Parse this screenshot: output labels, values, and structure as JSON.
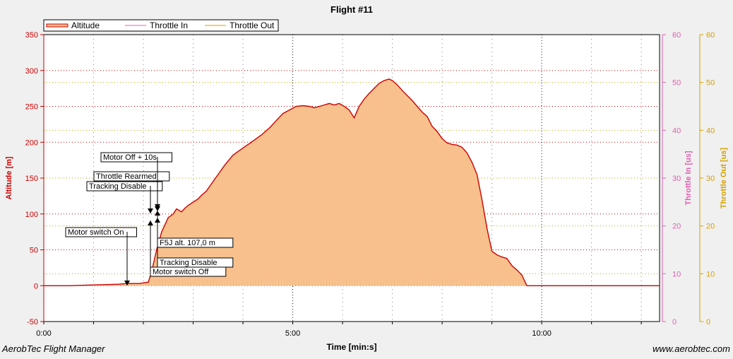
{
  "chart_data": {
    "type": "area",
    "title": "Flight #11",
    "xlabel": "Time [min:s]",
    "ylabel": "Altitude [m]",
    "y2label": "Throttle In [us]",
    "y3label": "Throttle Out [us]",
    "xlim_seconds": [
      0,
      742
    ],
    "ylim": [
      -50,
      350
    ],
    "y2lim": [
      0,
      60
    ],
    "y3lim": [
      0,
      60
    ],
    "x_ticks": [
      "0:00",
      "5:00",
      "10:00"
    ],
    "y_ticks": [
      "-50",
      "0",
      "50",
      "100",
      "150",
      "200",
      "250",
      "300",
      "350"
    ],
    "y2_ticks": [
      "0",
      "10",
      "20",
      "30",
      "40",
      "50",
      "60"
    ],
    "y3_ticks": [
      "0",
      "10",
      "20",
      "30",
      "40",
      "50",
      "60"
    ],
    "legend": [
      "Altitude",
      "Throttle In",
      "Throttle Out"
    ],
    "legend_position": "top-left",
    "colors": {
      "altitude_line": "#cc0000",
      "altitude_fill": "#f7c08c",
      "throttle_in": "#e060b0",
      "throttle_out": "#d4a000",
      "axis_left": "#cc0000",
      "axis_mid": "#e060b0",
      "axis_right": "#d4a000",
      "background": "#ffffff"
    },
    "series": [
      {
        "name": "Altitude",
        "x_seconds": [
          0,
          30,
          60,
          90,
          100,
          115,
          126,
          130,
          136,
          142,
          150,
          156,
          160,
          166,
          170,
          174,
          178,
          182,
          186,
          190,
          196,
          202,
          210,
          218,
          228,
          240,
          250,
          262,
          272,
          280,
          288,
          296,
          304,
          312,
          320,
          326,
          332,
          338,
          344,
          350,
          356,
          362,
          368,
          374,
          380,
          386,
          392,
          398,
          404,
          410,
          416,
          420,
          426,
          432,
          438,
          444,
          450,
          456,
          462,
          468,
          474,
          480,
          486,
          492,
          498,
          504,
          510,
          516,
          522,
          528,
          534,
          540,
          546,
          552,
          558,
          564,
          570,
          576,
          582,
          588,
          594,
          600,
          606,
          612,
          618,
          624,
          630,
          636,
          642,
          648,
          654,
          660,
          666,
          672,
          678,
          684,
          690,
          696,
          700,
          706,
          712,
          720,
          742
        ],
        "values": [
          0,
          0,
          1,
          2,
          3,
          3,
          5,
          20,
          50,
          75,
          95,
          100,
          107,
          103,
          108,
          112,
          115,
          118,
          121,
          126,
          132,
          142,
          155,
          168,
          182,
          192,
          200,
          210,
          220,
          230,
          240,
          245,
          250,
          251,
          250,
          248,
          250,
          252,
          254,
          252,
          254,
          250,
          245,
          234,
          250,
          260,
          268,
          275,
          282,
          286,
          288,
          286,
          280,
          272,
          265,
          258,
          250,
          242,
          236,
          222,
          215,
          205,
          199,
          197,
          196,
          193,
          185,
          172,
          155,
          120,
          80,
          48,
          43,
          40,
          38,
          28,
          22,
          15,
          0,
          0,
          0,
          0,
          0,
          0,
          0,
          0,
          0,
          0,
          0,
          0,
          0,
          0,
          0,
          0,
          0,
          0,
          0,
          0,
          0,
          0,
          0,
          0,
          0
        ]
      },
      {
        "name": "Throttle In",
        "values": []
      },
      {
        "name": "Throttle Out",
        "values": []
      }
    ],
    "annotations": [
      {
        "label": "Motor switch On",
        "x_seconds": 100,
        "y": 0
      },
      {
        "label": "Motor switch Off",
        "x_seconds": 129,
        "y": 90
      },
      {
        "label": "Tracking Disable",
        "x_seconds": 129,
        "y": 100
      },
      {
        "label": "Throttle Rearmed",
        "x_seconds": 138,
        "y": 107
      },
      {
        "label": "Motor Off + 10s",
        "x_seconds": 138,
        "y": 110
      },
      {
        "label": "F5J alt. 107,0 m",
        "x_seconds": 138,
        "y": 107
      },
      {
        "label": "Tracking Disable",
        "x_seconds": 138,
        "y": 104
      }
    ]
  },
  "footer": {
    "left": "AerobTec Flight Manager",
    "right": "www.aerobtec.com"
  }
}
